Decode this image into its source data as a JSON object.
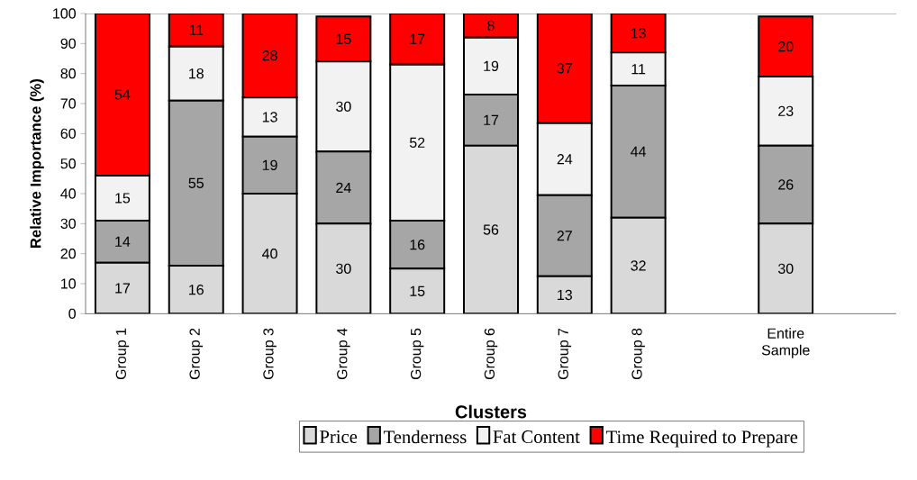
{
  "chart_data": {
    "type": "bar",
    "stacked": true,
    "xlabel": "Clusters",
    "ylabel": "Relative  Importance (%)",
    "categories": [
      "Group 1",
      "Group 2",
      "Group 3",
      "Group 4",
      "Group 5",
      "Group 6",
      "Group 7",
      "Group 8",
      null,
      "Entire Sample",
      null
    ],
    "series": [
      {
        "name": "Price",
        "color": "#d9d9d9",
        "values": [
          17,
          16,
          40,
          30,
          15,
          56,
          12.5,
          32,
          null,
          30,
          null
        ],
        "value_labels": [
          "17",
          "16",
          "40",
          "30",
          "15",
          "56",
          "13",
          "32",
          null,
          "30",
          null
        ]
      },
      {
        "name": "Tenderness",
        "color": "#a6a6a6",
        "values": [
          14,
          55,
          19,
          24,
          16,
          17,
          27,
          44,
          null,
          26,
          null
        ],
        "value_labels": [
          "14",
          "55",
          "19",
          "24",
          "16",
          "17",
          "27",
          "44",
          null,
          "26",
          null
        ]
      },
      {
        "name": "Fat Content",
        "color": "#f2f2f2",
        "values": [
          15,
          18,
          13,
          30,
          52,
          19,
          24,
          11,
          null,
          23,
          null
        ],
        "value_labels": [
          "15",
          "18",
          "13",
          "30",
          "52",
          "19",
          "24",
          "11",
          null,
          "23",
          null
        ]
      },
      {
        "name": "Time Required to Prepare",
        "color": "#ff0000",
        "values": [
          54,
          11,
          28,
          15,
          17,
          8,
          36.5,
          13,
          null,
          20,
          null
        ],
        "value_labels": [
          "54",
          "11",
          "28",
          "15",
          "17",
          "8",
          "37",
          "13",
          null,
          "20",
          null
        ]
      }
    ],
    "ylim": [
      0,
      100
    ],
    "yticks": [
      0,
      10,
      20,
      30,
      40,
      50,
      60,
      70,
      80,
      90,
      100
    ],
    "legend": "bottom"
  }
}
